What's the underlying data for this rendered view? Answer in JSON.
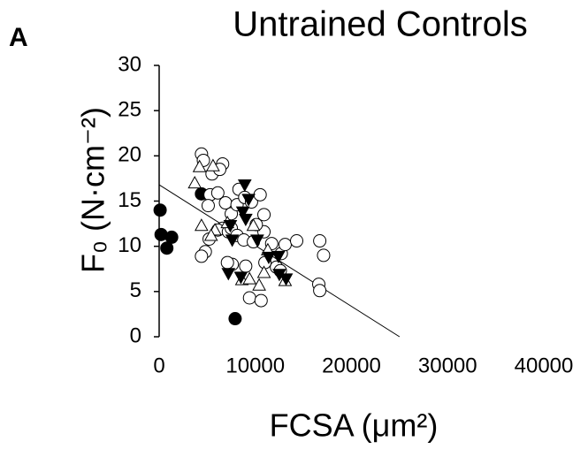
{
  "chart_data": {
    "type": "scatter",
    "panel_label": "A",
    "title": "Untrained Controls",
    "x_label": "FCSA (μm²)",
    "y_label": "F₀ (N·cm⁻²)",
    "xlim": [
      0,
      40000
    ],
    "xticks": [
      0,
      10000,
      20000,
      30000,
      40000
    ],
    "ylim": [
      0,
      30
    ],
    "yticks": [
      0,
      5,
      10,
      15,
      20,
      25,
      30
    ],
    "series": [
      {
        "marker": "circle",
        "color": "#000000",
        "filled": true,
        "x": [
          100,
          200,
          800,
          1300,
          4400,
          7900
        ],
        "values": [
          14.0,
          11.3,
          9.8,
          11.0,
          15.8,
          2.0
        ]
      },
      {
        "marker": "circle",
        "color": "#000000",
        "filled": false,
        "x": [
          4400,
          4600,
          5500,
          6600,
          6300,
          5300,
          6100,
          5100,
          6900,
          7500,
          8100,
          8300,
          8900,
          9600,
          10500,
          6600,
          5200,
          4800,
          4400,
          6100,
          7200,
          7500,
          8100,
          8800,
          9800,
          10900,
          11700,
          12700,
          13100,
          12200,
          11000,
          9000,
          7600,
          9400,
          10600,
          12600,
          14300,
          16700,
          17100,
          16600,
          16700,
          10100,
          10900,
          7100
        ],
        "values": [
          20.2,
          19.5,
          18.0,
          19.1,
          18.5,
          15.7,
          15.9,
          14.5,
          14.8,
          13.6,
          14.6,
          16.3,
          15.4,
          14.9,
          15.7,
          12.0,
          10.8,
          9.4,
          8.9,
          11.8,
          11.6,
          12.0,
          11.2,
          10.7,
          10.5,
          11.6,
          10.3,
          9.2,
          10.2,
          7.7,
          8.2,
          7.8,
          8.0,
          4.3,
          4.0,
          7.3,
          10.6,
          10.6,
          9.0,
          5.8,
          5.1,
          12.4,
          13.5,
          8.2
        ]
      },
      {
        "marker": "triangle-up",
        "color": "#000000",
        "filled": false,
        "x": [
          3700,
          4200,
          5600,
          4400,
          5800,
          5400,
          7100,
          8600,
          9400,
          10400,
          10900,
          11300,
          13100,
          9800
        ],
        "values": [
          17.0,
          18.8,
          18.9,
          12.3,
          11.8,
          11.2,
          12.6,
          6.3,
          6.4,
          5.7,
          7.1,
          9.6,
          6.2,
          12.3
        ]
      },
      {
        "marker": "triangle-down",
        "color": "#000000",
        "filled": true,
        "x": [
          8900,
          9300,
          8700,
          9000,
          7400,
          7600,
          10200,
          11400,
          12400,
          12500,
          13200,
          7200,
          8500
        ],
        "values": [
          16.8,
          15.2,
          13.8,
          13.0,
          12.3,
          10.7,
          10.7,
          8.8,
          8.9,
          6.9,
          6.4,
          7.0,
          6.6
        ]
      }
    ],
    "trend_line": {
      "x": [
        0,
        25000
      ],
      "values": [
        16.8,
        0
      ],
      "color": "#000000"
    }
  }
}
